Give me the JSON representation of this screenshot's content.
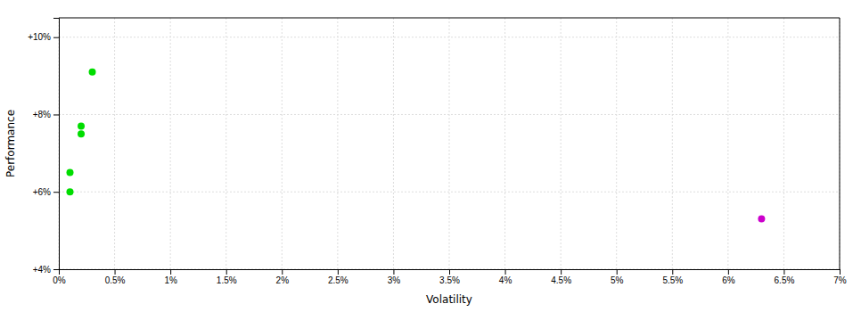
{
  "chart_data": {
    "type": "scatter",
    "xlabel": "Volatility",
    "ylabel": "Performance",
    "series": [
      {
        "color": "#00dd00",
        "x": [
          0.003,
          0.002,
          0.002,
          0.001,
          0.001
        ],
        "values": [
          0.091,
          0.077,
          0.075,
          0.065,
          0.06
        ]
      },
      {
        "color": "#cc00cc",
        "x": [
          0.063
        ],
        "values": [
          0.053
        ]
      }
    ],
    "xlim": [
      0.0,
      0.07
    ],
    "ylim": [
      0.04,
      0.105
    ],
    "xticks": [
      {
        "value": 0.0,
        "label": "0%"
      },
      {
        "value": 0.005,
        "label": "0.5%"
      },
      {
        "value": 0.01,
        "label": "1%"
      },
      {
        "value": 0.015,
        "label": "1.5%"
      },
      {
        "value": 0.02,
        "label": "2%"
      },
      {
        "value": 0.025,
        "label": "2.5%"
      },
      {
        "value": 0.03,
        "label": "3%"
      },
      {
        "value": 0.035,
        "label": "3.5%"
      },
      {
        "value": 0.04,
        "label": "4%"
      },
      {
        "value": 0.045,
        "label": "4.5%"
      },
      {
        "value": 0.05,
        "label": "5%"
      },
      {
        "value": 0.055,
        "label": "5.5%"
      },
      {
        "value": 0.06,
        "label": "6%"
      },
      {
        "value": 0.065,
        "label": "6.5%"
      },
      {
        "value": 0.07,
        "label": "7%"
      }
    ],
    "yticks": [
      {
        "value": 0.04,
        "label": "+4%"
      },
      {
        "value": 0.06,
        "label": "+6%"
      },
      {
        "value": 0.08,
        "label": "+8%"
      },
      {
        "value": 0.1,
        "label": "+10%"
      }
    ],
    "grid": true
  }
}
